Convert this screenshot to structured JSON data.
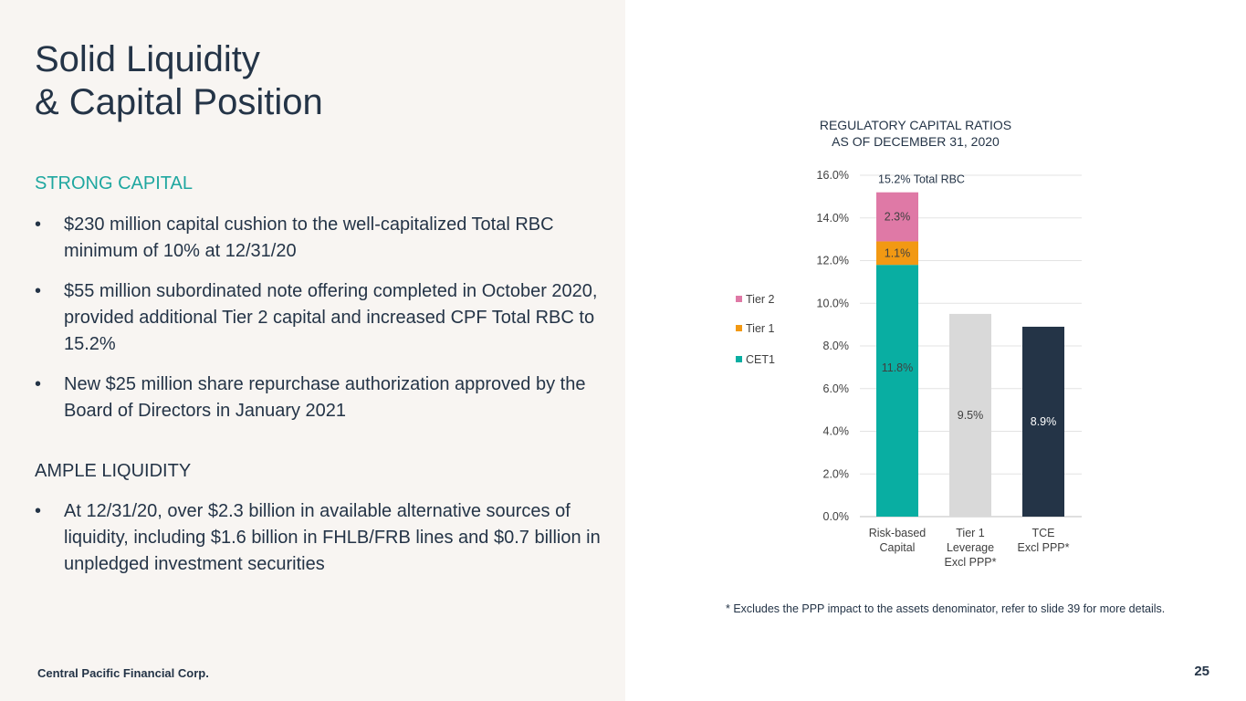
{
  "title": {
    "line1": "Solid Liquidity",
    "line2": "& Capital Position"
  },
  "strong_capital": {
    "heading": "STRONG CAPITAL",
    "bullets": [
      "$230 million capital cushion to the well-capitalized Total RBC minimum of 10% at 12/31/20",
      "$55 million subordinated note offering completed in October 2020, provided additional Tier 2 capital and increased CPF Total RBC to 15.2%",
      "New $25 million share repurchase authorization approved by the Board of Directors in January 2021"
    ]
  },
  "ample_liquidity": {
    "heading": "AMPLE LIQUIDITY",
    "bullets": [
      "At 12/31/20, over $2.3 billion in available alternative sources of liquidity, including $1.6 billion in  FHLB/FRB lines and $0.7 billion in unpledged investment securities"
    ]
  },
  "footer": {
    "company": "Central Pacific Financial Corp.",
    "page_number": "25"
  },
  "footnote": "* Excludes the PPP impact to the assets denominator, refer to slide 39 for more details.",
  "chart_data": {
    "type": "bar",
    "stacked": true,
    "title_line1": "REGULATORY CAPITAL RATIOS",
    "title_line2": "AS OF DECEMBER 31, 2020",
    "ylim": [
      0,
      16
    ],
    "yticks": [
      0,
      2,
      4,
      6,
      8,
      10,
      12,
      14,
      16
    ],
    "ytick_labels": [
      "0.0%",
      "2.0%",
      "4.0%",
      "6.0%",
      "8.0%",
      "10.0%",
      "12.0%",
      "14.0%",
      "16.0%"
    ],
    "grid": true,
    "legend_position": "left",
    "legend": [
      {
        "name": "Tier 2",
        "color": "#df79a6"
      },
      {
        "name": "Tier 1",
        "color": "#f29913"
      },
      {
        "name": "CET1",
        "color": "#09aea2"
      }
    ],
    "categories": [
      {
        "lines": [
          "Risk-based",
          "Capital"
        ]
      },
      {
        "lines": [
          "Tier 1",
          "Leverage",
          "Excl PPP*"
        ]
      },
      {
        "lines": [
          "TCE",
          "Excl PPP*"
        ]
      }
    ],
    "bars": [
      {
        "segments": [
          {
            "series": "CET1",
            "value": 11.8,
            "label": "11.8%",
            "color": "#09aea2"
          },
          {
            "series": "Tier 1",
            "value": 1.1,
            "label": "1.1%",
            "color": "#f29913"
          },
          {
            "series": "Tier 2",
            "value": 2.3,
            "label": "2.3%",
            "color": "#df79a6"
          }
        ],
        "total_label": "15.2% Total RBC",
        "total_value": 15.2
      },
      {
        "segments": [
          {
            "series": "Tier 1 Leverage",
            "value": 9.5,
            "label": "9.5%",
            "color": "#d9d9d9"
          }
        ]
      },
      {
        "segments": [
          {
            "series": "TCE",
            "value": 8.9,
            "label": "8.9%",
            "color": "#243447",
            "label_color": "#ffffff"
          }
        ]
      }
    ]
  }
}
